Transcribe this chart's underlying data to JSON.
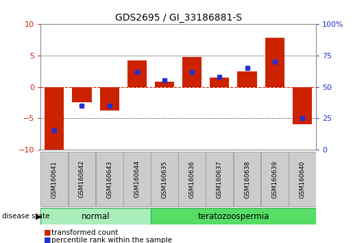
{
  "title": "GDS2695 / GI_33186881-S",
  "samples": [
    "GSM160641",
    "GSM160642",
    "GSM160643",
    "GSM160644",
    "GSM160635",
    "GSM160636",
    "GSM160637",
    "GSM160638",
    "GSM160639",
    "GSM160640"
  ],
  "red_values": [
    -10.5,
    -2.5,
    -3.8,
    4.2,
    0.8,
    4.8,
    1.5,
    2.5,
    7.8,
    -6.0
  ],
  "blue_percentiles": [
    15,
    35,
    35,
    62,
    55,
    62,
    58,
    65,
    70,
    25
  ],
  "ylim": [
    -10,
    10
  ],
  "y2lim": [
    0,
    100
  ],
  "yticks": [
    -10,
    -5,
    0,
    5,
    10
  ],
  "y2ticks": [
    0,
    25,
    50,
    75,
    100
  ],
  "normal_label": "normal",
  "terato_label": "teratozoospermia",
  "disease_state_label": "disease state",
  "bar_color": "#cc2200",
  "marker_color": "#2233cc",
  "bar_width": 0.7,
  "bg_color": "#ffffff",
  "plot_bg": "#ffffff",
  "axis_label_color_left": "#cc2200",
  "axis_label_color_right": "#2233cc",
  "normal_bg": "#aaeebb",
  "terato_bg": "#55dd66",
  "label_box_bg": "#cccccc",
  "label_box_edge": "#999999",
  "legend_red_label": "transformed count",
  "legend_blue_label": "percentile rank within the sample"
}
